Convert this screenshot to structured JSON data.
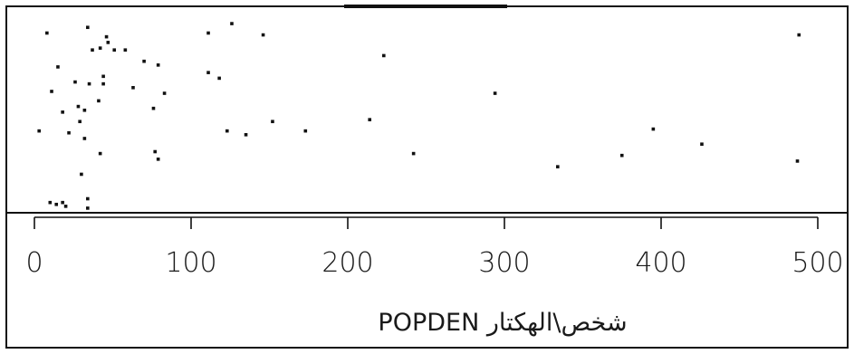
{
  "chart_data": {
    "type": "scatter",
    "title": "",
    "xlabel": "POPDEN شخص\\الهكتار",
    "ylabel": "",
    "xlim": [
      0,
      500
    ],
    "x_ticks": [
      "0",
      "100",
      "200",
      "300",
      "400",
      "500"
    ],
    "grid": false,
    "legend": "none",
    "point_color": "#111111",
    "points": [
      {
        "x": 8,
        "y": 0.94
      },
      {
        "x": 34,
        "y": 0.97
      },
      {
        "x": 46,
        "y": 0.92
      },
      {
        "x": 47,
        "y": 0.89
      },
      {
        "x": 37,
        "y": 0.85
      },
      {
        "x": 42,
        "y": 0.86
      },
      {
        "x": 51,
        "y": 0.85
      },
      {
        "x": 58,
        "y": 0.85
      },
      {
        "x": 70,
        "y": 0.79
      },
      {
        "x": 79,
        "y": 0.77
      },
      {
        "x": 15,
        "y": 0.76
      },
      {
        "x": 44,
        "y": 0.71
      },
      {
        "x": 26,
        "y": 0.68
      },
      {
        "x": 35,
        "y": 0.67
      },
      {
        "x": 44,
        "y": 0.67
      },
      {
        "x": 63,
        "y": 0.65
      },
      {
        "x": 83,
        "y": 0.62
      },
      {
        "x": 11,
        "y": 0.63
      },
      {
        "x": 41,
        "y": 0.58
      },
      {
        "x": 28,
        "y": 0.55
      },
      {
        "x": 18,
        "y": 0.52
      },
      {
        "x": 32,
        "y": 0.53
      },
      {
        "x": 76,
        "y": 0.54
      },
      {
        "x": 29,
        "y": 0.47
      },
      {
        "x": 3,
        "y": 0.42
      },
      {
        "x": 22,
        "y": 0.41
      },
      {
        "x": 32,
        "y": 0.38
      },
      {
        "x": 42,
        "y": 0.3
      },
      {
        "x": 77,
        "y": 0.31
      },
      {
        "x": 79,
        "y": 0.27
      },
      {
        "x": 30,
        "y": 0.19
      },
      {
        "x": 10,
        "y": 0.04
      },
      {
        "x": 14,
        "y": 0.03
      },
      {
        "x": 18,
        "y": 0.04
      },
      {
        "x": 20,
        "y": 0.02
      },
      {
        "x": 34,
        "y": 0.06
      },
      {
        "x": 34,
        "y": 0.01
      },
      {
        "x": 111,
        "y": 0.94
      },
      {
        "x": 126,
        "y": 0.99
      },
      {
        "x": 146,
        "y": 0.93
      },
      {
        "x": 111,
        "y": 0.73
      },
      {
        "x": 118,
        "y": 0.7
      },
      {
        "x": 123,
        "y": 0.42
      },
      {
        "x": 135,
        "y": 0.4
      },
      {
        "x": 152,
        "y": 0.47
      },
      {
        "x": 173,
        "y": 0.42
      },
      {
        "x": 214,
        "y": 0.48
      },
      {
        "x": 223,
        "y": 0.82
      },
      {
        "x": 242,
        "y": 0.3
      },
      {
        "x": 294,
        "y": 0.62
      },
      {
        "x": 334,
        "y": 0.23
      },
      {
        "x": 375,
        "y": 0.29
      },
      {
        "x": 395,
        "y": 0.43
      },
      {
        "x": 426,
        "y": 0.35
      },
      {
        "x": 487,
        "y": 0.26
      },
      {
        "x": 488,
        "y": 0.93
      }
    ]
  }
}
